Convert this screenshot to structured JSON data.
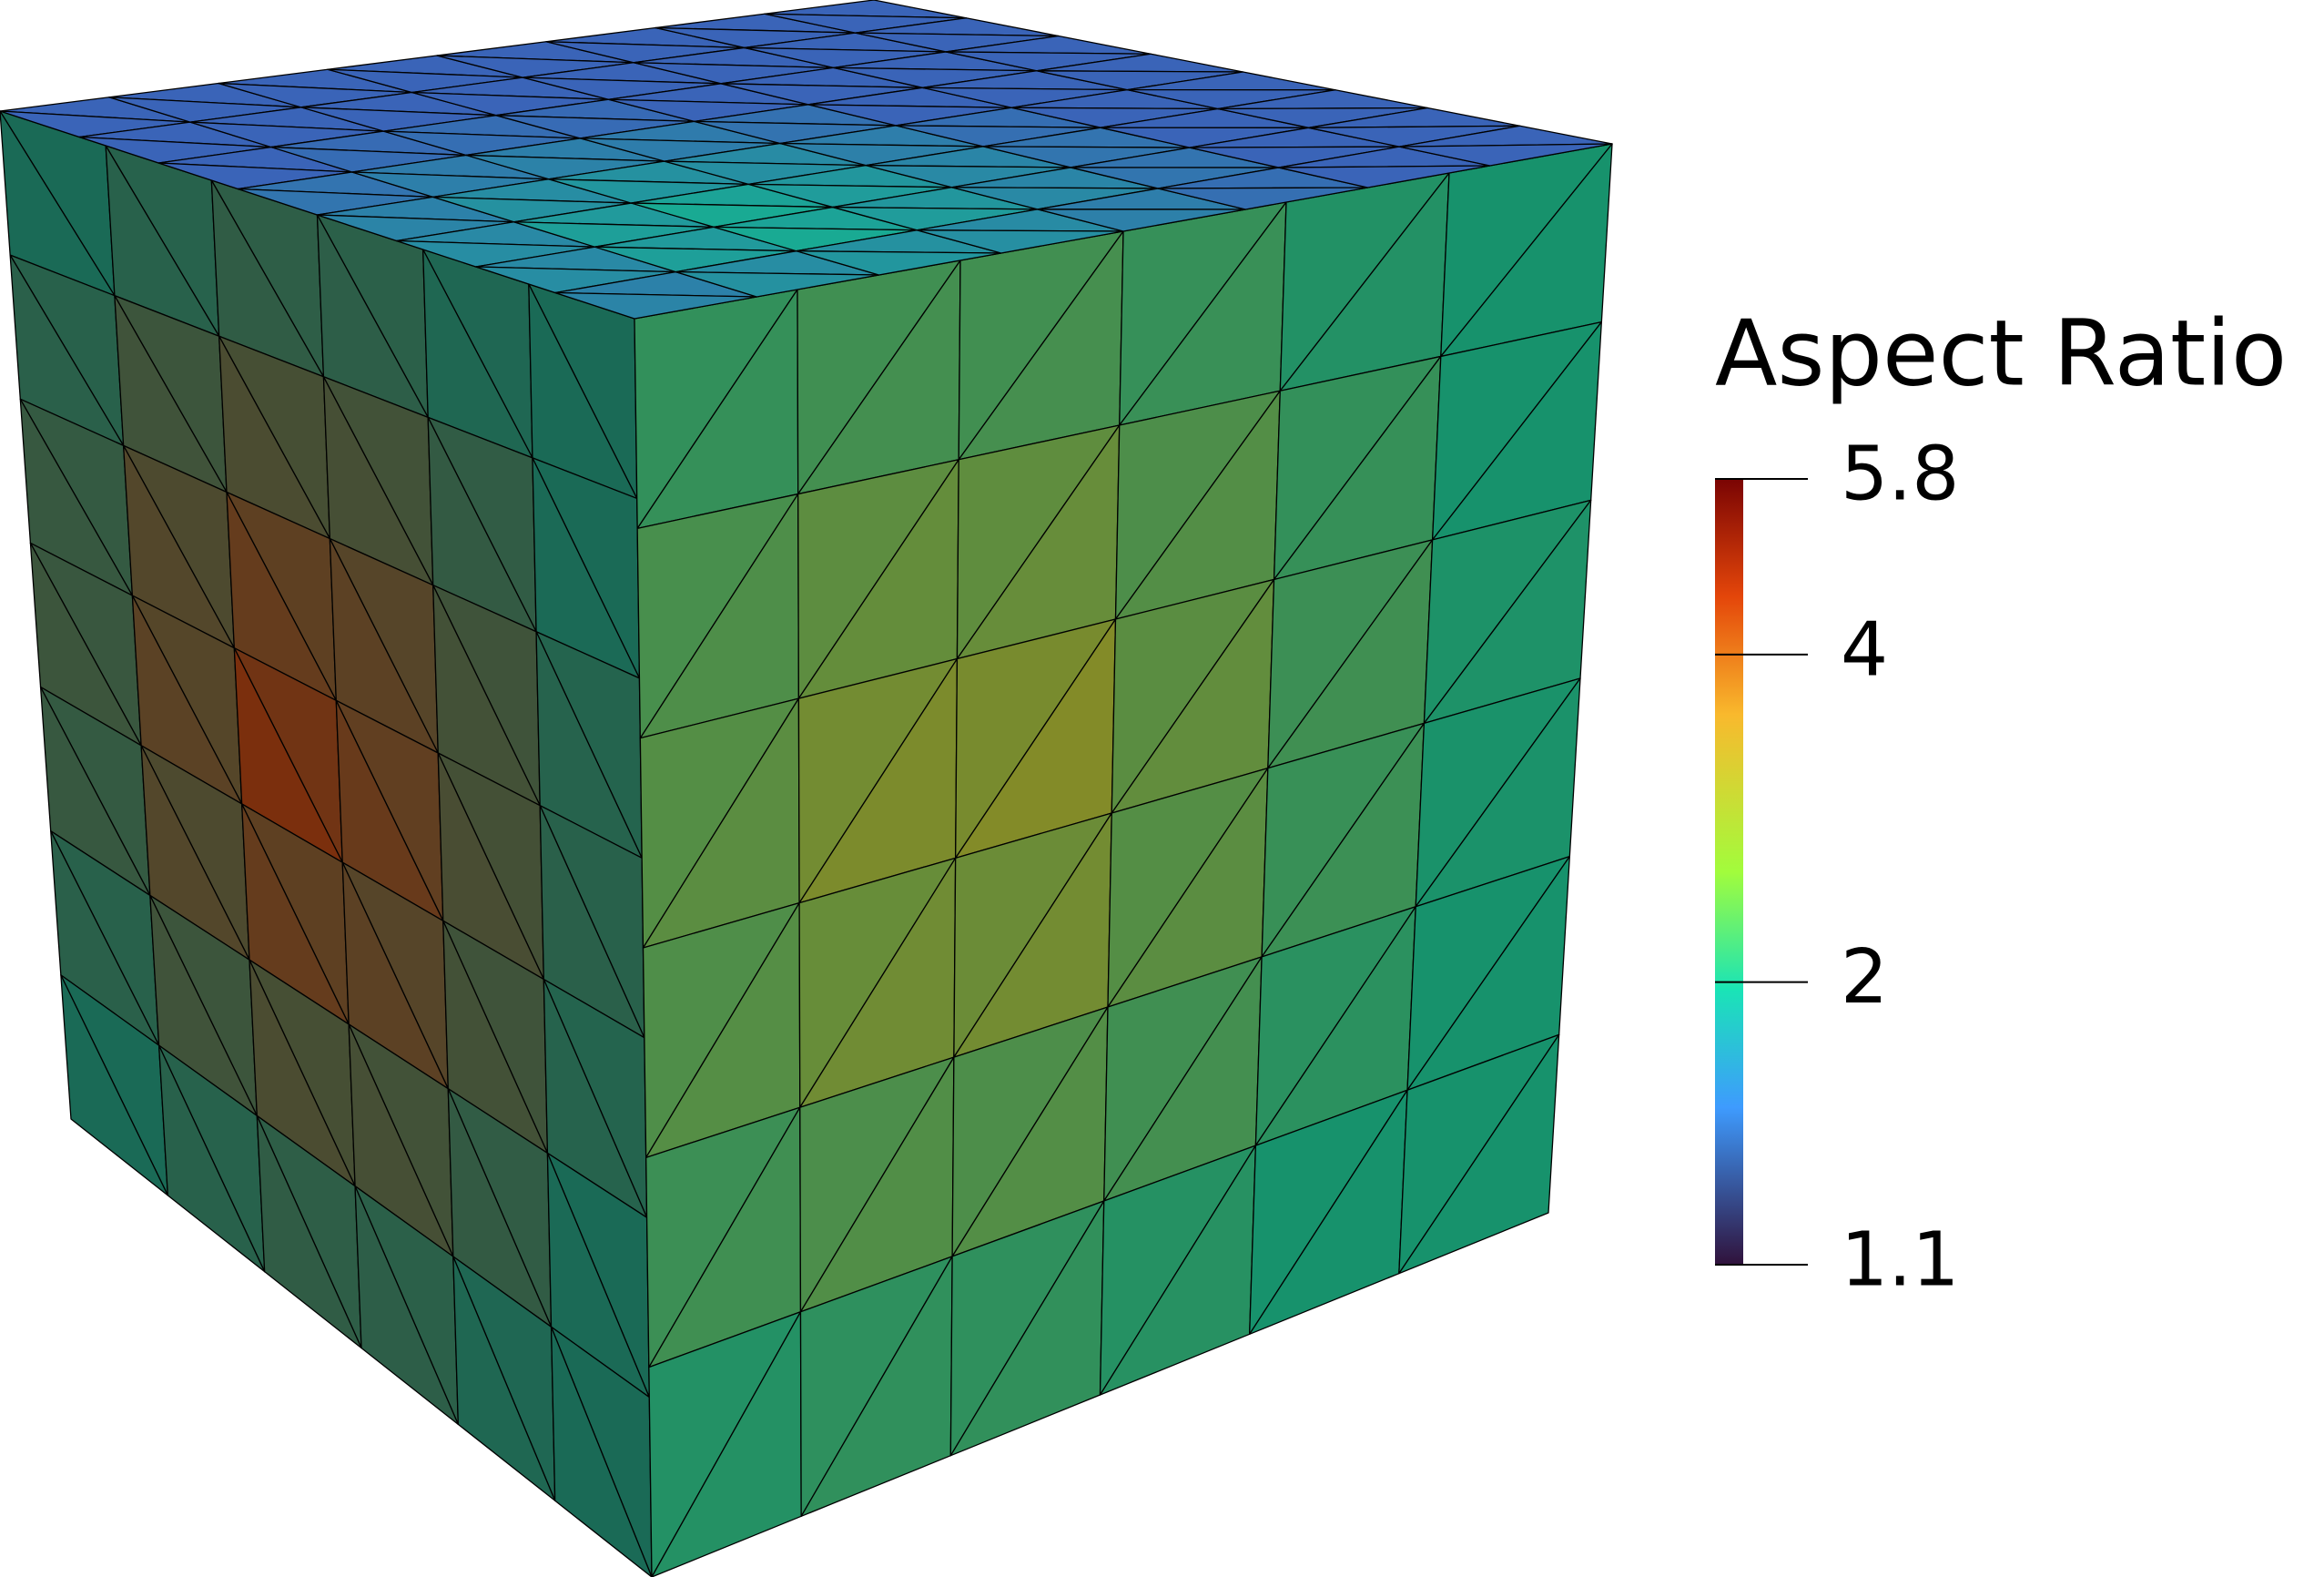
{
  "colorbar": {
    "title": "Aspect Ratio",
    "range": [
      1.1,
      5.8
    ],
    "ticks": [
      5.8,
      4,
      2,
      1.1
    ],
    "log": true
  }
}
